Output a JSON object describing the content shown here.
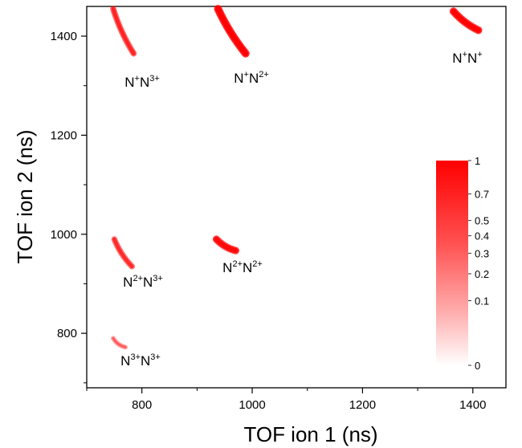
{
  "chart_data": {
    "type": "heatmap",
    "title": "",
    "xlabel": "TOF ion 1 (ns)",
    "ylabel": "TOF ion 2 (ns)",
    "xlim": [
      700,
      1460
    ],
    "ylim": [
      690,
      1460
    ],
    "x_ticks": [
      800,
      1000,
      1200,
      1400
    ],
    "y_ticks": [
      800,
      1000,
      1200,
      1400
    ],
    "grid": false,
    "color_scale": {
      "color": "#ff0000",
      "ticks": [
        "1",
        "0.7",
        "0.5",
        "0.4",
        "0.3",
        "0.2",
        "0.1",
        "0"
      ],
      "values": [
        1,
        0.7,
        0.5,
        0.4,
        0.3,
        0.2,
        0.1,
        0
      ]
    },
    "channels": [
      {
        "ion1": "N",
        "ion1_charge": "+",
        "ion2": "N",
        "ion2_charge": "3+",
        "x": [
          748,
          785
        ],
        "y": [
          1455,
          1365
        ],
        "intensity": 0.55
      },
      {
        "ion1": "N",
        "ion1_charge": "+",
        "ion2": "N",
        "ion2_charge": "2+",
        "x": [
          938,
          988
        ],
        "y": [
          1455,
          1365
        ],
        "intensity": 1.0
      },
      {
        "ion1": "N",
        "ion1_charge": "+",
        "ion2": "N",
        "ion2_charge": "+",
        "x": [
          1365,
          1410
        ],
        "y": [
          1450,
          1412
        ],
        "intensity": 0.95
      },
      {
        "ion1": "N",
        "ion1_charge": "2+",
        "ion2": "N",
        "ion2_charge": "3+",
        "x": [
          750,
          782
        ],
        "y": [
          990,
          935
        ],
        "intensity": 0.5
      },
      {
        "ion1": "N",
        "ion1_charge": "2+",
        "ion2": "N",
        "ion2_charge": "2+",
        "x": [
          935,
          970
        ],
        "y": [
          990,
          967
        ],
        "intensity": 0.85
      },
      {
        "ion1": "N",
        "ion1_charge": "3+",
        "ion2": "N",
        "ion2_charge": "3+",
        "x": [
          748,
          770
        ],
        "y": [
          790,
          772
        ],
        "intensity": 0.18
      }
    ]
  }
}
